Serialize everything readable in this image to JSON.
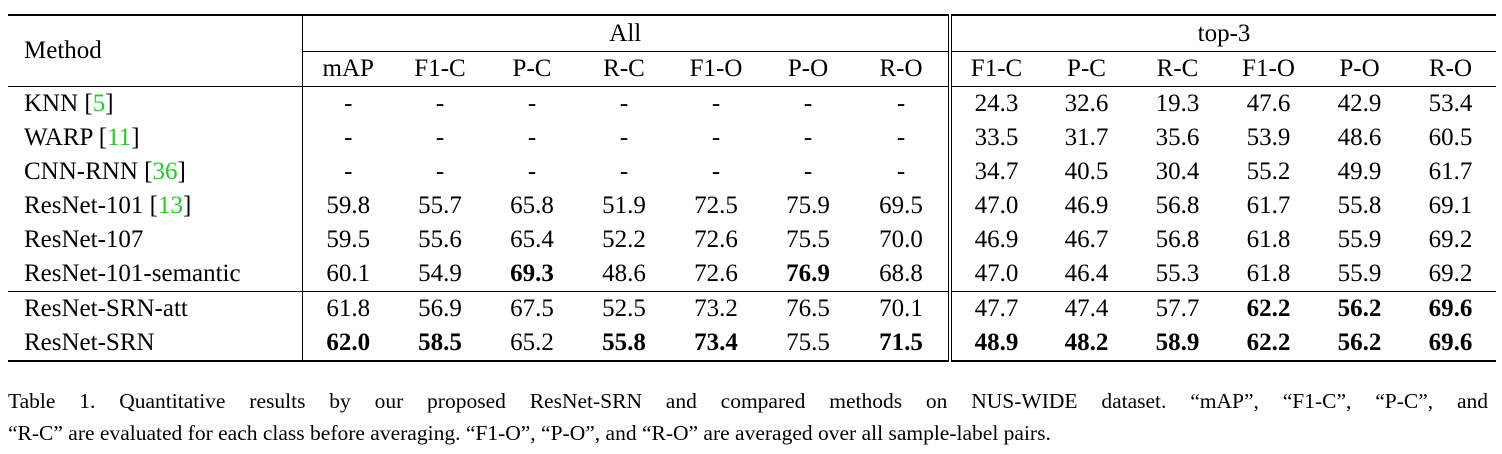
{
  "table": {
    "header": {
      "method": "Method",
      "groups": [
        "All",
        "top-3"
      ],
      "all_columns": [
        "mAP",
        "F1-C",
        "P-C",
        "R-C",
        "F1-O",
        "P-O",
        "R-O"
      ],
      "top3_columns": [
        "F1-C",
        "P-C",
        "R-C",
        "F1-O",
        "P-O",
        "R-O"
      ]
    },
    "body": [
      [
        {
          "method": "KNN",
          "cite": [
            "[",
            "5",
            "]"
          ],
          "cells": [
            "-",
            "-",
            "-",
            "-",
            "-",
            "-",
            "-",
            "24.3",
            "32.6",
            "19.3",
            "47.6",
            "42.9",
            "53.4"
          ],
          "bold": []
        },
        {
          "method": "WARP",
          "cite": [
            "[",
            "11",
            "]"
          ],
          "cells": [
            "-",
            "-",
            "-",
            "-",
            "-",
            "-",
            "-",
            "33.5",
            "31.7",
            "35.6",
            "53.9",
            "48.6",
            "60.5"
          ],
          "bold": []
        },
        {
          "method": "CNN-RNN",
          "cite": [
            "[",
            "36",
            "]"
          ],
          "cells": [
            "-",
            "-",
            "-",
            "-",
            "-",
            "-",
            "-",
            "34.7",
            "40.5",
            "30.4",
            "55.2",
            "49.9",
            "61.7"
          ],
          "bold": []
        },
        {
          "method": "ResNet-101",
          "cite": [
            "[",
            "13",
            "]"
          ],
          "cells": [
            "59.8",
            "55.7",
            "65.8",
            "51.9",
            "72.5",
            "75.9",
            "69.5",
            "47.0",
            "46.9",
            "56.8",
            "61.7",
            "55.8",
            "69.1"
          ],
          "bold": []
        },
        {
          "method": "ResNet-107",
          "cells": [
            "59.5",
            "55.6",
            "65.4",
            "52.2",
            "72.6",
            "75.5",
            "70.0",
            "46.9",
            "46.7",
            "56.8",
            "61.8",
            "55.9",
            "69.2"
          ],
          "bold": []
        },
        {
          "method": "ResNet-101-semantic",
          "cells": [
            "60.1",
            "54.9",
            "69.3",
            "48.6",
            "72.6",
            "76.9",
            "68.8",
            "47.0",
            "46.4",
            "55.3",
            "61.8",
            "55.9",
            "69.2"
          ],
          "bold": [
            2,
            5
          ]
        }
      ],
      [
        {
          "method": "ResNet-SRN-att",
          "cells": [
            "61.8",
            "56.9",
            "67.5",
            "52.5",
            "73.2",
            "76.5",
            "70.1",
            "47.7",
            "47.4",
            "57.7",
            "62.2",
            "56.2",
            "69.6"
          ],
          "bold": [
            10,
            11,
            12
          ]
        },
        {
          "method": "ResNet-SRN",
          "cells": [
            "62.0",
            "58.5",
            "65.2",
            "55.8",
            "73.4",
            "75.5",
            "71.5",
            "48.9",
            "48.2",
            "58.9",
            "62.2",
            "56.2",
            "69.6"
          ],
          "bold": [
            0,
            1,
            3,
            4,
            6,
            7,
            8,
            9,
            10,
            11,
            12
          ]
        }
      ]
    ]
  },
  "caption": {
    "lines": [
      "Table 1. Quantitative results by our proposed ResNet-SRN and compared methods on NUS-WIDE dataset. “mAP”, “F1-C”, “P-C”, and",
      "“R-C” are evaluated for each class before averaging. “F1-O”, “P-O”, and “R-O” are averaged over all sample-label pairs."
    ]
  }
}
